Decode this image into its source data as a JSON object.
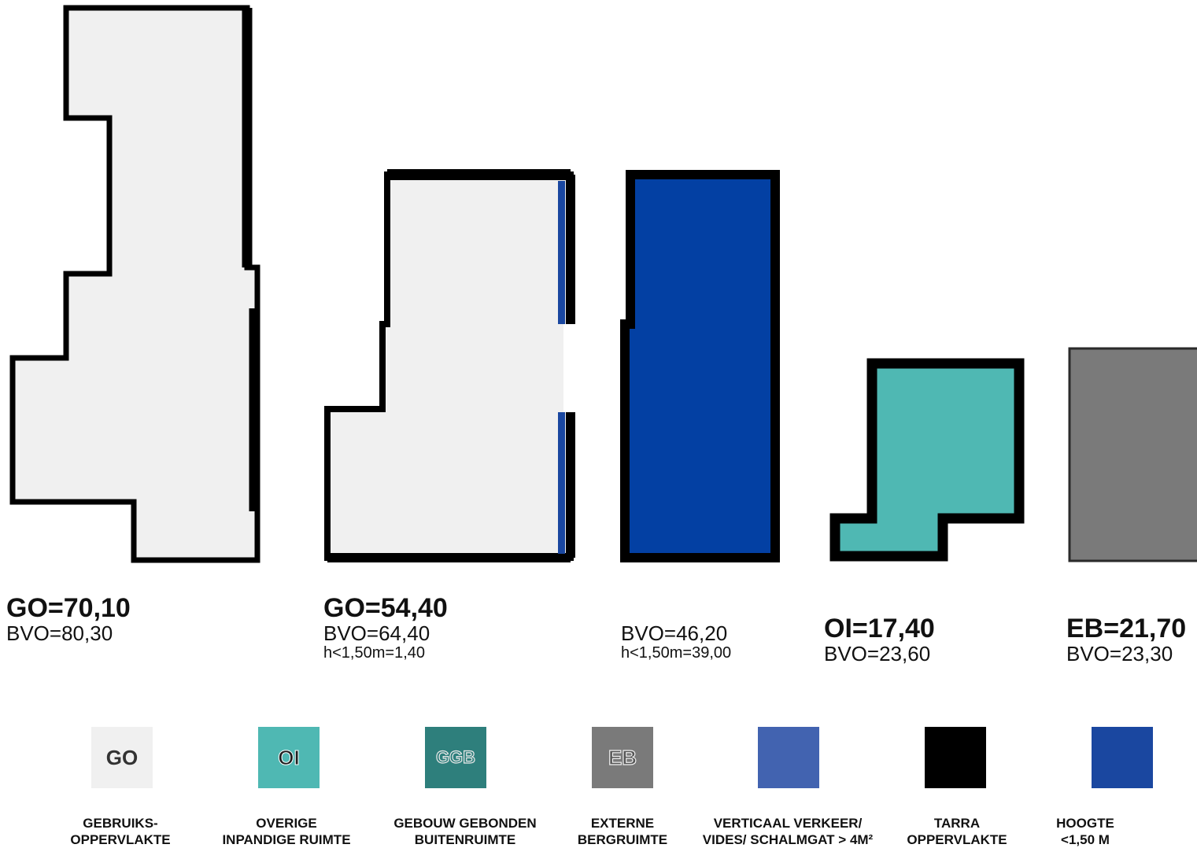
{
  "colors": {
    "go": "#f0f0f0",
    "oi": "#4fb8b3",
    "ggb": "#2e7f7c",
    "eb": "#7a7a7a",
    "verkeer": "#4263b0",
    "tarra": "#000000",
    "hoogte": "#1a47a0",
    "blue_plan": "#0340a3"
  },
  "plans": [
    {
      "main": "GO=70,10",
      "bvo": "BVO=80,30",
      "h": ""
    },
    {
      "main": "GO=54,40",
      "bvo": "BVO=64,40",
      "h": "h<1,50m=1,40"
    },
    {
      "main": "",
      "bvo": "BVO=46,20",
      "h": "h<1,50m=39,00"
    },
    {
      "main": "OI=17,40",
      "bvo": "BVO=23,60",
      "h": ""
    },
    {
      "main": "EB=21,70",
      "bvo": "BVO=23,30",
      "h": ""
    }
  ],
  "legend": [
    {
      "code": "GO",
      "line1": "GEBRUIKS-",
      "line2": "OPPERVLAKTE"
    },
    {
      "code": "OI",
      "line1": "OVERIGE",
      "line2": "INPANDIGE RUIMTE"
    },
    {
      "code": "GGB",
      "line1": "GEBOUW GEBONDEN",
      "line2": "BUITENRUIMTE"
    },
    {
      "code": "EB",
      "line1": "EXTERNE",
      "line2": "BERGRUIMTE"
    },
    {
      "code": "",
      "line1": "VERTICAAL VERKEER/",
      "line2": "VIDES/ SCHALMGAT > 4M²"
    },
    {
      "code": "",
      "line1": "TARRA",
      "line2": "OPPERVLAKTE"
    },
    {
      "code": "",
      "line1": "HOOGTE",
      "line2": "<1,50 M"
    }
  ]
}
